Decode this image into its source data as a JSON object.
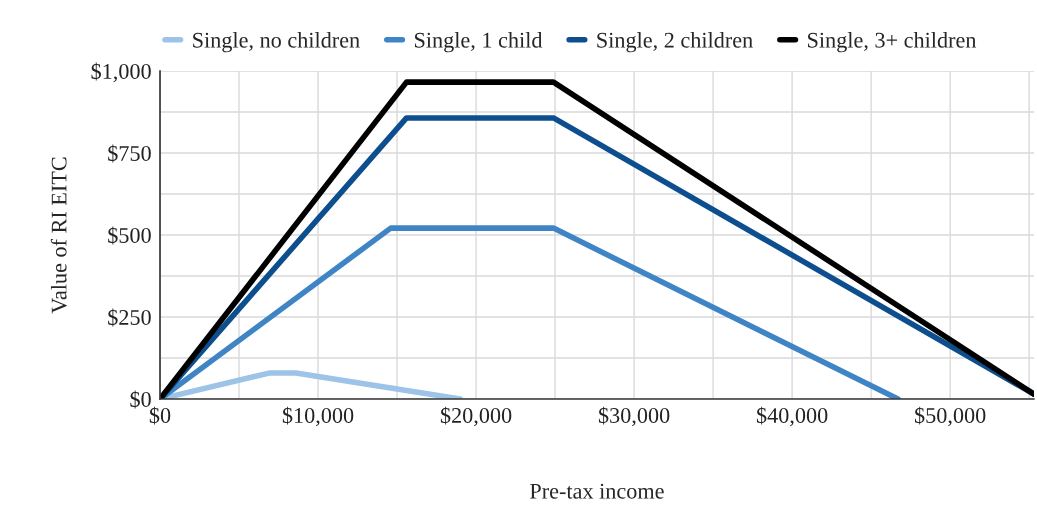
{
  "chart_data": {
    "type": "line",
    "xlabel": "Pre-tax income",
    "ylabel": "Value of RI EITC",
    "series": [
      {
        "name": "Single, no children",
        "color": "#9dc3e6",
        "x": [
          0,
          6900,
          8600,
          19000
        ],
        "values": [
          0,
          79,
          79,
          0
        ]
      },
      {
        "name": "Single, 1 child",
        "color": "#3f85c6",
        "x": [
          0,
          14600,
          24900,
          46700
        ],
        "values": [
          0,
          521,
          521,
          0
        ]
      },
      {
        "name": "Single, 2 children",
        "color": "#0d4f8e",
        "x": [
          0,
          15600,
          24900,
          55300
        ],
        "values": [
          0,
          857,
          857,
          15
        ]
      },
      {
        "name": "Single, 3+ children",
        "color": "#000000",
        "x": [
          0,
          15600,
          24900,
          55300
        ],
        "values": [
          0,
          966,
          966,
          15
        ]
      }
    ],
    "xlim": [
      0,
      55300
    ],
    "xticks": [
      {
        "value": 0,
        "label": "$0"
      },
      {
        "value": 5000,
        "label": null
      },
      {
        "value": 10000,
        "label": "$10,000"
      },
      {
        "value": 15000,
        "label": null
      },
      {
        "value": 20000,
        "label": "$20,000"
      },
      {
        "value": 25000,
        "label": null
      },
      {
        "value": 30000,
        "label": "$30,000"
      },
      {
        "value": 35000,
        "label": null
      },
      {
        "value": 40000,
        "label": "$40,000"
      },
      {
        "value": 45000,
        "label": null
      },
      {
        "value": 50000,
        "label": "$50,000"
      },
      {
        "value": 55000,
        "label": null
      }
    ],
    "ylim": [
      0,
      1000
    ],
    "yticks": [
      {
        "value": 0,
        "label": "$0"
      },
      {
        "value": 125,
        "label": null
      },
      {
        "value": 250,
        "label": "$250"
      },
      {
        "value": 375,
        "label": null
      },
      {
        "value": 500,
        "label": "$500"
      },
      {
        "value": 625,
        "label": null
      },
      {
        "value": 750,
        "label": "$750"
      },
      {
        "value": 875,
        "label": null
      },
      {
        "value": 1000,
        "label": "$1,000"
      }
    ],
    "grid": true,
    "legend": "top",
    "marker": "none",
    "line_style": "solid"
  }
}
